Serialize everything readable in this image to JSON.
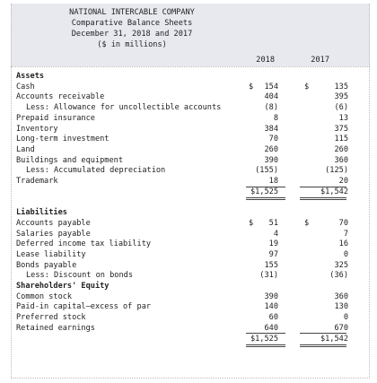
{
  "header": {
    "company": "NATIONAL INTERCABLE COMPANY",
    "title": "Comparative Balance Sheets",
    "date": "December 31, 2018 and 2017",
    "units": "($ in millions)"
  },
  "columns": {
    "y2018": "2018",
    "y2017": "2017"
  },
  "rows": [
    {
      "label": "Assets",
      "heading": true
    },
    {
      "label": "Cash",
      "d18": "$",
      "v18": "154",
      "d17": "$",
      "v17": "135"
    },
    {
      "label": "Accounts receivable",
      "v18": "404",
      "v17": "395"
    },
    {
      "label": "Less: Allowance for uncollectible accounts",
      "indent": true,
      "v18": "(8)",
      "v17": "(6)"
    },
    {
      "label": "Prepaid insurance",
      "v18": "8",
      "v17": "13"
    },
    {
      "label": "Inventory",
      "v18": "384",
      "v17": "375"
    },
    {
      "label": "Long-term investment",
      "v18": "70",
      "v17": "115"
    },
    {
      "label": "Land",
      "v18": "260",
      "v17": "260"
    },
    {
      "label": "Buildings and equipment",
      "v18": "390",
      "v17": "360"
    },
    {
      "label": "Less: Accumulated depreciation",
      "indent": true,
      "v18": "(155)",
      "v17": "(125)"
    },
    {
      "label": "Trademark",
      "v18": "18",
      "v17": "20",
      "underline": true
    },
    {
      "label": "",
      "v18": "$1,525",
      "v17": "$1,542",
      "double": true
    },
    {
      "label": "",
      "spacer": true
    },
    {
      "label": "Liabilities",
      "heading": true
    },
    {
      "label": "Accounts payable",
      "d18": "$",
      "v18": "51",
      "d17": "$",
      "v17": "70"
    },
    {
      "label": "Salaries payable",
      "v18": "4",
      "v17": "7"
    },
    {
      "label": "Deferred income tax liability",
      "v18": "19",
      "v17": "16"
    },
    {
      "label": "Lease liability",
      "v18": "97",
      "v17": "0"
    },
    {
      "label": "Bonds payable",
      "v18": "155",
      "v17": "325"
    },
    {
      "label": "Less: Discount on bonds",
      "indent": true,
      "v18": "(31)",
      "v17": "(36)"
    },
    {
      "label": "Shareholders' Equity",
      "heading": true
    },
    {
      "label": "Common stock",
      "v18": "390",
      "v17": "360"
    },
    {
      "label": "Paid-in capital–excess of par",
      "v18": "140",
      "v17": "130"
    },
    {
      "label": "Preferred stock",
      "v18": "60",
      "v17": "0"
    },
    {
      "label": "Retained earnings",
      "v18": "640",
      "v17": "670",
      "underline": true
    },
    {
      "label": "",
      "v18": "$1,525",
      "v17": "$1,542",
      "double": true
    }
  ]
}
